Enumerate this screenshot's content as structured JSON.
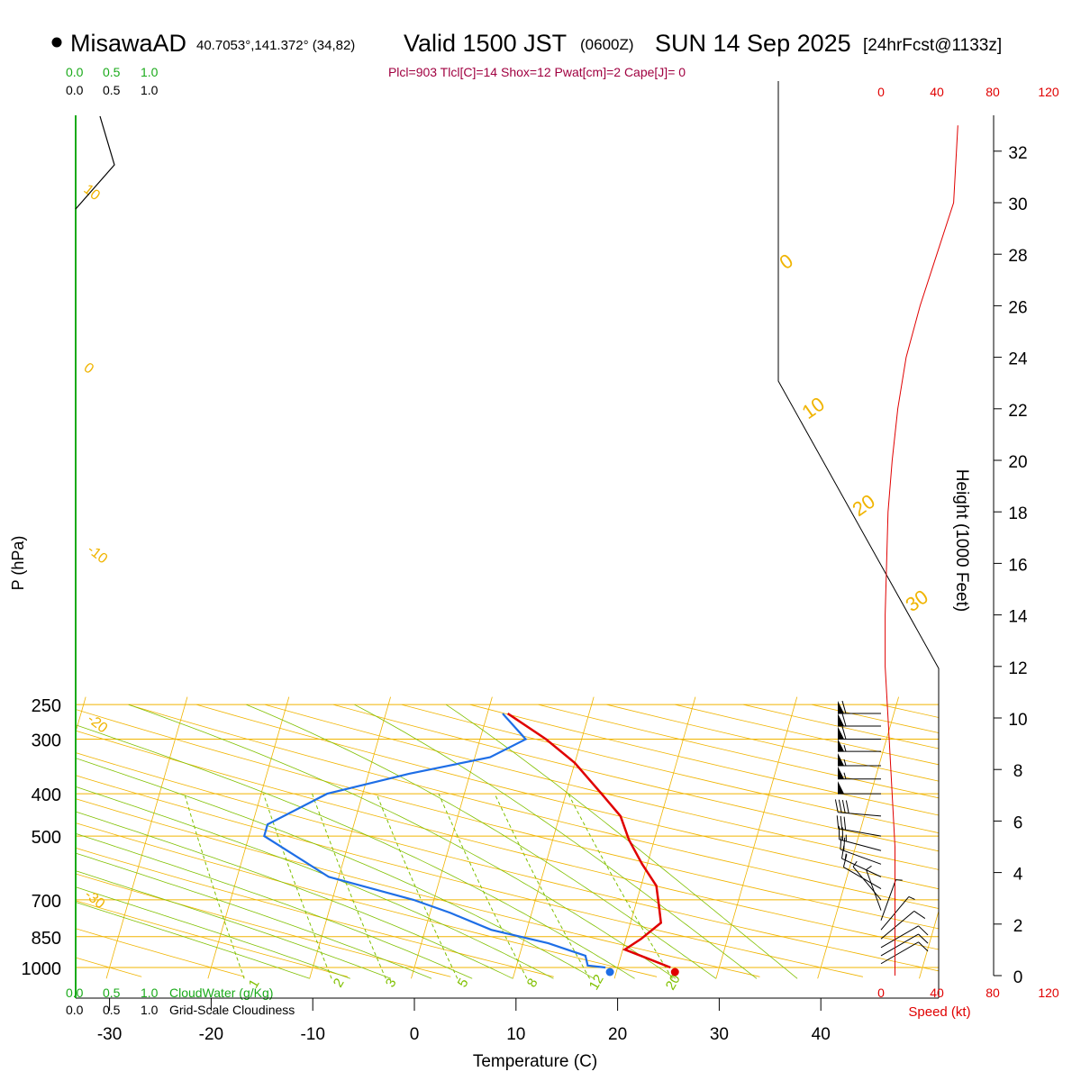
{
  "header": {
    "station": "MisawaAD",
    "coords": "40.7053°,141.372° (34,82)",
    "valid_main": "Valid 1500 JST",
    "valid_z": "(0600Z)",
    "valid_date": "SUN 14 Sep 2025",
    "forecast": "[24hrFcst@1133z]",
    "indices": "Plcl=903 Tlcl[C]=14 Shox=12 Pwat[cm]=2 Cape[J]= 0"
  },
  "colors": {
    "isotherm": "#f0b400",
    "dry_adiabat": "#f0b400",
    "moist_adiabat": "#80c000",
    "mixing_ratio": "#80c000",
    "temperature": "#e00000",
    "dewpoint": "#1e6ee6",
    "speed": "#e00000",
    "cloud": "#1aaa1a",
    "indices": "#a00040"
  },
  "labels": {
    "cloudwater_scale": [
      "0.0",
      "0.5",
      "1.0"
    ],
    "cloudiness_scale": [
      "0.0",
      "0.5",
      "1.0"
    ],
    "cloudwater_title": "CloudWater (g/Kg)",
    "cloudiness_title": "Grid-Scale Cloudiness",
    "speed_ticks": [
      "0",
      "40",
      "80",
      "120"
    ],
    "speed_title": "Speed (kt)",
    "height_title": "Height (1000 Feet)",
    "pressure_title": "P (hPa)",
    "temp_title": "Temperature (C)",
    "dry_adiabat_labels": [
      "10",
      "0",
      "-10",
      "-20",
      "-30"
    ],
    "moist_adiabat_labels": [
      "0",
      "10",
      "20",
      "30"
    ],
    "mixing_ratio_labels": [
      "1",
      "2",
      "3",
      "5",
      "8",
      "12",
      "20"
    ]
  },
  "chart_data": {
    "type": "line",
    "title": "MisawaAD Valid 1500 JST (0600Z) SUN 14 Sep 2025",
    "xlabel": "Temperature (C)",
    "ylabel": "P (hPa)",
    "x_ticks": [
      -30,
      -20,
      -10,
      0,
      10,
      20,
      30,
      40
    ],
    "y_ticks": [
      250,
      300,
      400,
      500,
      700,
      850,
      1000
    ],
    "height_ticks_kft": [
      0,
      2,
      4,
      6,
      8,
      10,
      12,
      14,
      16,
      18,
      20,
      22,
      24,
      26,
      28,
      30,
      32
    ],
    "y_scale": "log-skewT",
    "series": [
      {
        "name": "Temperature",
        "points": [
          [
            25.2,
            1000
          ],
          [
            22.5,
            950
          ],
          [
            20.2,
            910
          ],
          [
            21.5,
            860
          ],
          [
            23.0,
            790
          ],
          [
            22.3,
            720
          ],
          [
            21.5,
            650
          ],
          [
            19.5,
            580
          ],
          [
            17.5,
            510
          ],
          [
            16.0,
            450
          ],
          [
            13.5,
            400
          ],
          [
            10.0,
            340
          ],
          [
            6.5,
            300
          ],
          [
            2.0,
            262
          ]
        ]
      },
      {
        "name": "Dewpoint",
        "points": [
          [
            18.8,
            1000
          ],
          [
            17.0,
            990
          ],
          [
            16.5,
            940
          ],
          [
            12.5,
            880
          ],
          [
            6.5,
            820
          ],
          [
            2.0,
            750
          ],
          [
            -2.0,
            700
          ],
          [
            -11.0,
            620
          ],
          [
            -18.5,
            500
          ],
          [
            -18.5,
            470
          ],
          [
            -13.5,
            400
          ],
          [
            -6.0,
            360
          ],
          [
            1.5,
            330
          ],
          [
            4.5,
            300
          ],
          [
            1.5,
            262
          ]
        ]
      },
      {
        "name": "Speed",
        "points": [
          [
            10,
            0
          ],
          [
            10,
            1
          ],
          [
            10,
            5
          ],
          [
            7,
            8
          ],
          [
            5,
            10
          ],
          [
            3,
            12
          ],
          [
            3,
            14
          ],
          [
            4,
            16
          ],
          [
            5,
            18
          ],
          [
            8,
            20
          ],
          [
            12,
            22
          ],
          [
            18,
            24
          ],
          [
            28,
            26
          ],
          [
            40,
            28
          ],
          [
            52,
            30
          ],
          [
            55,
            33
          ]
        ]
      }
    ],
    "surface_parcel": {
      "temperature": 25.2,
      "dewpoint": 18.8
    },
    "wind_barbs": [
      {
        "p": 262,
        "dir": 270,
        "speed": 60
      },
      {
        "p": 280,
        "dir": 270,
        "speed": 60
      },
      {
        "p": 300,
        "dir": 270,
        "speed": 60
      },
      {
        "p": 320,
        "dir": 270,
        "speed": 55
      },
      {
        "p": 345,
        "dir": 270,
        "speed": 55
      },
      {
        "p": 370,
        "dir": 270,
        "speed": 55
      },
      {
        "p": 400,
        "dir": 270,
        "speed": 50
      },
      {
        "p": 450,
        "dir": 275,
        "speed": 40
      },
      {
        "p": 500,
        "dir": 280,
        "speed": 30
      },
      {
        "p": 540,
        "dir": 285,
        "speed": 25
      },
      {
        "p": 580,
        "dir": 290,
        "speed": 20
      },
      {
        "p": 620,
        "dir": 295,
        "speed": 15
      },
      {
        "p": 660,
        "dir": 300,
        "speed": 12
      },
      {
        "p": 700,
        "dir": 320,
        "speed": 8
      },
      {
        "p": 740,
        "dir": 340,
        "speed": 6
      },
      {
        "p": 780,
        "dir": 20,
        "speed": 5
      },
      {
        "p": 820,
        "dir": 40,
        "speed": 8
      },
      {
        "p": 860,
        "dir": 50,
        "speed": 10
      },
      {
        "p": 900,
        "dir": 60,
        "speed": 10
      },
      {
        "p": 940,
        "dir": 60,
        "speed": 10
      },
      {
        "p": 980,
        "dir": 60,
        "speed": 10
      }
    ],
    "grid": true
  }
}
